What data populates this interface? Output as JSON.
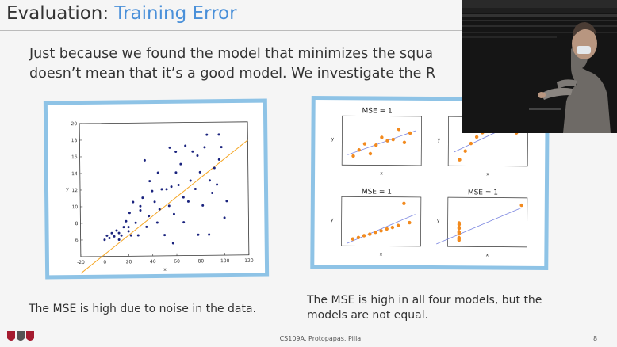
{
  "slide": {
    "title_prefix": "Evaluation: ",
    "title_accent": "Training Error",
    "intro_line1": "Just because we found the model that minimizes the squa",
    "intro_line2": "doesn’t mean that it’s a good model. We investigate the R",
    "caption_left": "The MSE is high due to noise in the data.",
    "caption_right": "The MSE is high in all four models, but the models are not equal.",
    "footer": "CS109A, Protopapas, Pillai",
    "page_number": "8",
    "accent_color": "#4a90d9",
    "frame_color": "#8ec3e6"
  },
  "chart_data": [
    {
      "type": "scatter",
      "xlabel": "x",
      "ylabel": "y",
      "xlim": [
        -20,
        120
      ],
      "ylim": [
        4,
        20
      ],
      "xticks": [
        "-20",
        "0",
        "20",
        "40",
        "60",
        "80",
        "100",
        "120"
      ],
      "yticks": [
        "6",
        "8",
        "10",
        "12",
        "14",
        "16",
        "18",
        "20"
      ],
      "points": [
        [
          0,
          6
        ],
        [
          2,
          6.5
        ],
        [
          4,
          6.2
        ],
        [
          6,
          6.8
        ],
        [
          8,
          6.4
        ],
        [
          10,
          7.1
        ],
        [
          12,
          6
        ],
        [
          14,
          6.5
        ],
        [
          16,
          7.5
        ],
        [
          18,
          8.2
        ],
        [
          20,
          7
        ],
        [
          21,
          9.2
        ],
        [
          22,
          6.5
        ],
        [
          24,
          10.5
        ],
        [
          26,
          8
        ],
        [
          28,
          6.5
        ],
        [
          30,
          9.5
        ],
        [
          32,
          11
        ],
        [
          34,
          15.5
        ],
        [
          35,
          7.5
        ],
        [
          37,
          8.8
        ],
        [
          40,
          11.8
        ],
        [
          42,
          10.5
        ],
        [
          44,
          8
        ],
        [
          46,
          9.6
        ],
        [
          48,
          12
        ],
        [
          50,
          6.5
        ],
        [
          52,
          12
        ],
        [
          54,
          10
        ],
        [
          55,
          17
        ],
        [
          56,
          12.3
        ],
        [
          58,
          9
        ],
        [
          60,
          14
        ],
        [
          62,
          12.5
        ],
        [
          64,
          15
        ],
        [
          66,
          11
        ],
        [
          68,
          17.2
        ],
        [
          70,
          10.5
        ],
        [
          72,
          13
        ],
        [
          74,
          16.5
        ],
        [
          76,
          12
        ],
        [
          78,
          16
        ],
        [
          80,
          14
        ],
        [
          82,
          10
        ],
        [
          84,
          17
        ],
        [
          86,
          18.5
        ],
        [
          88,
          13
        ],
        [
          90,
          11.5
        ],
        [
          92,
          14.5
        ],
        [
          94,
          12.5
        ],
        [
          96,
          15.5
        ],
        [
          98,
          17
        ],
        [
          100,
          8.5
        ],
        [
          102,
          10.5
        ],
        [
          45,
          14
        ],
        [
          38,
          13
        ],
        [
          30,
          10
        ],
        [
          20,
          7.5
        ],
        [
          12,
          6.8
        ],
        [
          66,
          8
        ],
        [
          78,
          6.5
        ],
        [
          87,
          6.5
        ],
        [
          57,
          5.5
        ],
        [
          60,
          16.5
        ],
        [
          96,
          18.5
        ]
      ],
      "fit_line": [
        [
          -20,
          2
        ],
        [
          120,
          17.8
        ]
      ]
    },
    {
      "type": "scatter",
      "title": "MSE = 1",
      "xlabel": "x",
      "ylabel": "y",
      "points": [
        [
          4,
          4.2
        ],
        [
          5,
          5.7
        ],
        [
          6,
          7.2
        ],
        [
          7,
          4.8
        ],
        [
          8,
          6.9
        ],
        [
          9,
          8.8
        ],
        [
          10,
          8
        ],
        [
          11,
          8.3
        ],
        [
          12,
          10.8
        ],
        [
          13,
          7.6
        ],
        [
          14,
          9.9
        ]
      ],
      "fit_line": [
        [
          3,
          4.5
        ],
        [
          15,
          10.5
        ]
      ]
    },
    {
      "type": "scatter",
      "title": "",
      "xlabel": "x",
      "ylabel": "y",
      "points": [
        [
          4,
          3.1
        ],
        [
          5,
          4.7
        ],
        [
          6,
          6.1
        ],
        [
          7,
          7.3
        ],
        [
          8,
          8.1
        ],
        [
          9,
          8.8
        ],
        [
          10,
          9.1
        ],
        [
          11,
          9.3
        ],
        [
          12,
          9.1
        ],
        [
          13,
          8.7
        ],
        [
          14,
          8.1
        ]
      ],
      "fit_line": [
        [
          3,
          4.5
        ],
        [
          15,
          10.5
        ]
      ]
    },
    {
      "type": "scatter",
      "title": "MSE = 1",
      "xlabel": "x",
      "ylabel": "y",
      "points": [
        [
          4,
          5.4
        ],
        [
          5,
          5.7
        ],
        [
          6,
          6.1
        ],
        [
          7,
          6.4
        ],
        [
          8,
          6.8
        ],
        [
          9,
          7.1
        ],
        [
          10,
          7.5
        ],
        [
          11,
          7.8
        ],
        [
          12,
          8.2
        ],
        [
          13,
          12.7
        ],
        [
          14,
          8.8
        ]
      ],
      "fit_line": [
        [
          3,
          4.5
        ],
        [
          15,
          10.5
        ]
      ]
    },
    {
      "type": "scatter",
      "title": "MSE = 1",
      "xlabel": "x",
      "ylabel": "y",
      "points": [
        [
          8,
          6.6
        ],
        [
          8,
          5.8
        ],
        [
          8,
          7.7
        ],
        [
          8,
          8.8
        ],
        [
          8,
          8.5
        ],
        [
          8,
          7
        ],
        [
          8,
          5.3
        ],
        [
          8,
          5.6
        ],
        [
          8,
          6.9
        ],
        [
          8,
          7.9
        ],
        [
          19,
          12.5
        ]
      ],
      "fit_line": [
        [
          4,
          4.5
        ],
        [
          19,
          12
        ]
      ]
    }
  ]
}
